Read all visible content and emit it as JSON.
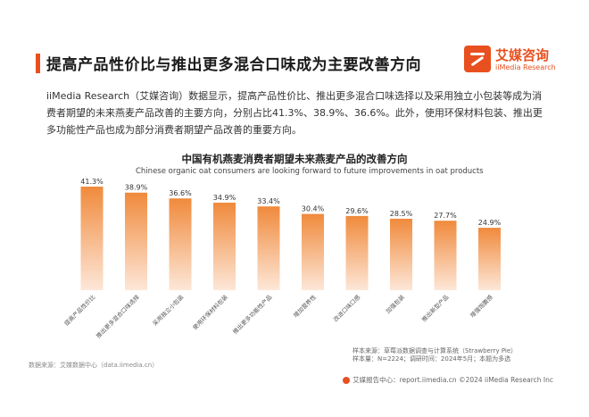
{
  "header": {
    "title": "提高产品性价比与推出更多混合口味成为主要改善方向",
    "logo_cn": "艾媒咨询",
    "logo_en": "iiMedia Research",
    "accent_color": "#e8501f"
  },
  "intro_text": "iiMedia Research（艾媒咨询）数据显示，提高产品性价比、推出更多混合口味选择以及采用独立小包装等成为消费者期望的未来燕麦产品改善的主要方向，分别占比41.3%、38.9%、36.6%。此外，使用环保材料包装、推出更多功能性产品也成为部分消费者期望产品改善的重要方向。",
  "chart_data": {
    "type": "bar",
    "title": "中国有机燕麦消费者期望未来燕麦产品的改善方向",
    "subtitle": "Chinese organic oat consumers are looking forward to future improvements in oat products",
    "categories": [
      "提高产品性价比",
      "推出更多混合口味选择",
      "采用独立小包装",
      "使用环保材料包装",
      "推出更多功能性产品",
      "增加营养性",
      "改进口味口感",
      "加强包装",
      "推出新型产品",
      "增强饱腹感"
    ],
    "values": [
      41.3,
      38.9,
      36.6,
      34.9,
      33.4,
      30.4,
      29.6,
      28.5,
      27.7,
      24.9
    ],
    "value_labels": [
      "41.3%",
      "38.9%",
      "36.6%",
      "34.9%",
      "33.4%",
      "30.4%",
      "29.6%",
      "28.5%",
      "27.7%",
      "24.9%"
    ],
    "ylim": [
      0,
      50
    ],
    "unit": "%",
    "grid": false,
    "legend": "none",
    "bar_gradient": [
      "#f08a3c",
      "#fde7d8"
    ]
  },
  "footnotes": {
    "sample_source": "样本来源：草莓派数据调查与计算系统（Strawberry Pie）",
    "sample_info": "样本量：N=2224；调研时间：2024年5月；本题为多选",
    "data_source": "数据来源：艾媒数据中心（data.iimedia.cn）"
  },
  "footer": {
    "text": "艾媒报告中心：report.iimedia.cn ©2024 iiMedia Research Inc"
  }
}
